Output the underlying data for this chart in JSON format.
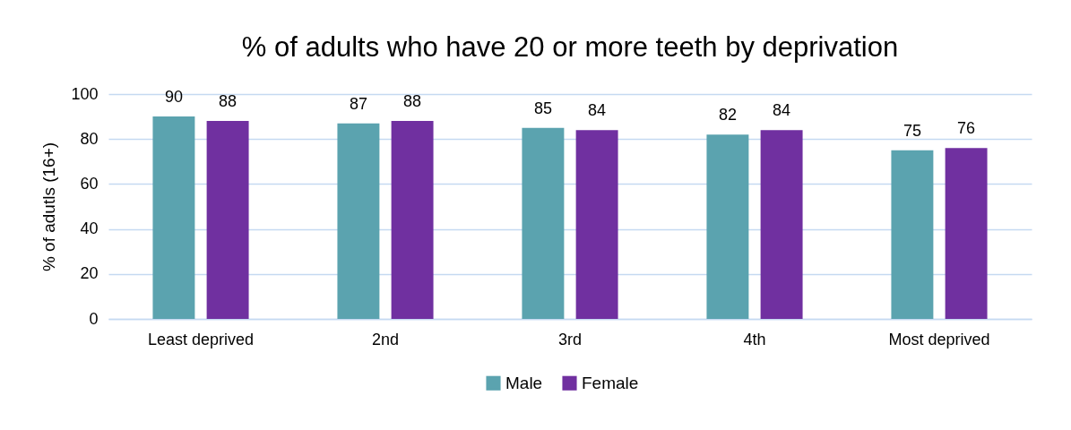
{
  "chart_data": {
    "type": "bar",
    "title": "% of adults who have 20 or more teeth by deprivation",
    "ylabel": "% of adutls (16+)",
    "categories": [
      "Least deprived",
      "2nd",
      "3rd",
      "4th",
      "Most deprived"
    ],
    "series": [
      {
        "name": "Male",
        "color": "#5ba3af",
        "values": [
          90,
          87,
          85,
          82,
          75
        ]
      },
      {
        "name": "Female",
        "color": "#7030a0",
        "values": [
          88,
          88,
          84,
          84,
          76
        ]
      }
    ],
    "ylim": [
      0,
      100
    ],
    "yticks": [
      0,
      20,
      40,
      60,
      80,
      100
    ],
    "grid": "y",
    "legend": "bottom",
    "data_labels": true
  }
}
